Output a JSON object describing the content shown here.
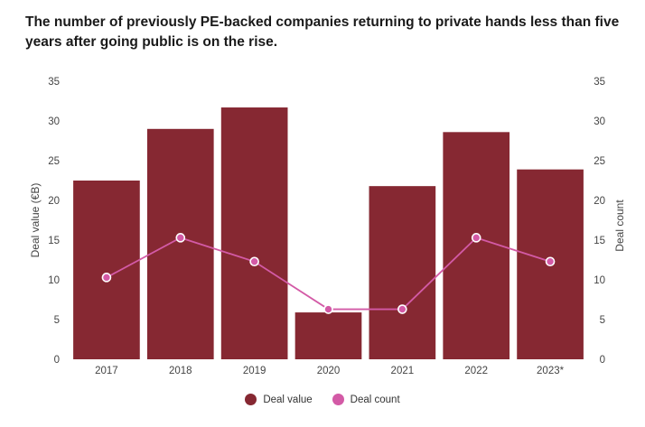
{
  "title": "The number of previously PE-backed companies returning to private hands less than five years after going public  is on the rise.",
  "chart_data": {
    "type": "bar",
    "categories": [
      "2017",
      "2018",
      "2019",
      "2020",
      "2021",
      "2022",
      "2023*"
    ],
    "series": [
      {
        "name": "Deal value",
        "type": "bar",
        "axis": "left",
        "values": [
          22.5,
          29,
          31.7,
          5.9,
          21.8,
          28.6,
          23.9
        ]
      },
      {
        "name": "Deal count",
        "type": "line",
        "axis": "right",
        "values": [
          10.3,
          15.3,
          12.3,
          6.3,
          6.3,
          15.3,
          12.3
        ]
      }
    ],
    "ylabel": "Deal value (€B)",
    "y2label": "Deal count",
    "ylim": [
      0,
      35
    ],
    "y2lim": [
      0,
      35
    ],
    "yticks": [
      "0",
      "5",
      "10",
      "15",
      "20",
      "25",
      "30",
      "35"
    ],
    "y2ticks": [
      "0",
      "5",
      "10",
      "15",
      "20",
      "25",
      "30",
      "35"
    ],
    "grid": false,
    "legend_position": "bottom-center"
  },
  "colors": {
    "bar": "#862832",
    "line": "#d35aa6"
  }
}
